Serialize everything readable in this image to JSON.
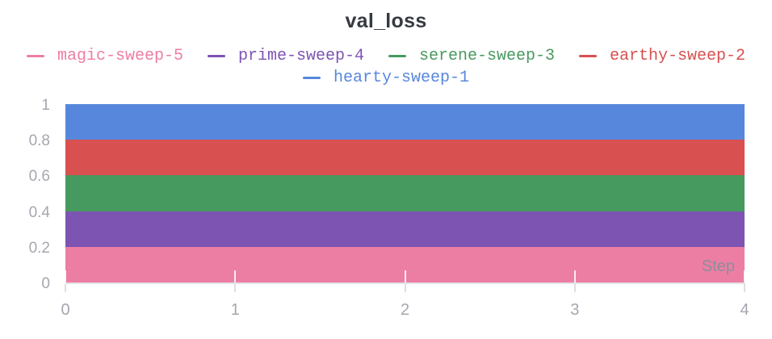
{
  "chart": {
    "title": "val_loss",
    "x_axis_title": "Step",
    "x_tick_labels": [
      "0",
      "1",
      "2",
      "3",
      "4"
    ],
    "y_tick_labels": [
      "1",
      "0.8",
      "0.6",
      "0.4",
      "0.2",
      "0"
    ],
    "legend": [
      {
        "label": "magic-sweep-5",
        "color": "#ec7ea3",
        "swatch": "line-dash"
      },
      {
        "label": "prime-sweep-4",
        "color": "#7d54b2",
        "swatch": "line-dash"
      },
      {
        "label": "serene-sweep-3",
        "color": "#479a5f",
        "swatch": "line-dash"
      },
      {
        "label": "earthy-sweep-2",
        "color": "#d8504f",
        "swatch": "line-dash"
      },
      {
        "label": "hearty-sweep-1",
        "color": "#5787dc",
        "swatch": "line-dash"
      }
    ],
    "colors": {
      "title_text": "#363a41",
      "axis_text": "#a6a6b0",
      "step_text": "#8f8e99",
      "axis_line": "#e3e3e7"
    }
  },
  "chart_data": {
    "type": "area",
    "title": "val_loss",
    "xlabel": "Step",
    "ylabel": "",
    "x": [
      0,
      1,
      2,
      3,
      4
    ],
    "xlim": [
      0,
      4
    ],
    "ylim": [
      0,
      1
    ],
    "x_ticks": [
      0,
      1,
      2,
      3,
      4
    ],
    "y_ticks": [
      0,
      0.2,
      0.4,
      0.6,
      0.8,
      1
    ],
    "grid": "off",
    "legend_position": "top",
    "series": [
      {
        "name": "magic-sweep-5",
        "color": "#ec7ea3",
        "values": [
          0.2,
          0.2,
          0.2,
          0.2,
          0.2
        ]
      },
      {
        "name": "prime-sweep-4",
        "color": "#7d54b2",
        "values": [
          0.4,
          0.4,
          0.4,
          0.4,
          0.4
        ]
      },
      {
        "name": "serene-sweep-3",
        "color": "#479a5f",
        "values": [
          0.6,
          0.6,
          0.6,
          0.6,
          0.6
        ]
      },
      {
        "name": "earthy-sweep-2",
        "color": "#d8504f",
        "values": [
          0.8,
          0.8,
          0.8,
          0.8,
          0.8
        ]
      },
      {
        "name": "hearty-sweep-1",
        "color": "#5787dc",
        "values": [
          1.0,
          1.0,
          1.0,
          1.0,
          1.0
        ]
      }
    ]
  }
}
